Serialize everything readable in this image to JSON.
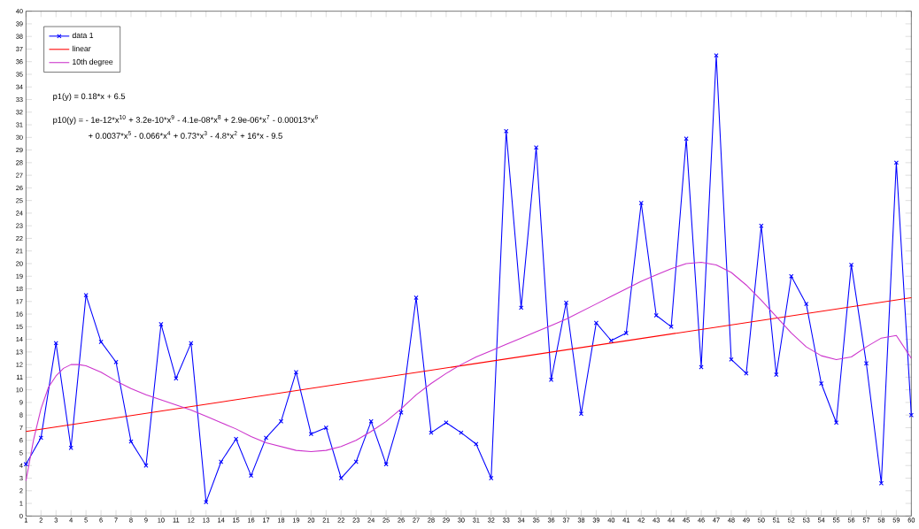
{
  "chart_data": {
    "type": "line",
    "x": [
      1,
      2,
      3,
      4,
      5,
      6,
      7,
      8,
      9,
      10,
      11,
      12,
      13,
      14,
      15,
      16,
      17,
      18,
      19,
      20,
      21,
      22,
      23,
      24,
      25,
      26,
      27,
      28,
      29,
      30,
      31,
      32,
      33,
      34,
      35,
      36,
      37,
      38,
      39,
      40,
      41,
      42,
      43,
      44,
      45,
      46,
      47,
      48,
      49,
      50,
      51,
      52,
      53,
      54,
      55,
      56,
      57,
      58,
      59,
      60
    ],
    "series": [
      {
        "name": "data 1",
        "color": "#0000ff",
        "marker": "cross",
        "values": [
          4.1,
          6.2,
          13.7,
          5.4,
          17.5,
          13.8,
          12.2,
          5.9,
          4.0,
          15.2,
          10.9,
          13.7,
          1.1,
          4.3,
          6.1,
          3.2,
          6.2,
          7.5,
          11.4,
          6.5,
          7.0,
          3.0,
          4.3,
          7.5,
          4.1,
          8.2,
          17.3,
          6.6,
          7.4,
          6.6,
          5.7,
          3.0,
          30.5,
          16.5,
          29.2,
          10.8,
          16.9,
          8.1,
          15.3,
          13.9,
          14.5,
          24.8,
          15.9,
          15.0,
          29.9,
          11.8,
          36.5,
          12.4,
          11.3,
          23.0,
          11.2,
          19.0,
          16.8,
          10.5,
          7.4,
          19.9,
          12.1,
          2.6,
          28.0,
          8.0
        ]
      },
      {
        "name": "linear",
        "color": "#ff0000",
        "x": [
          1,
          60
        ],
        "values": [
          6.7,
          17.3
        ]
      },
      {
        "name": "10th degree",
        "color": "#cc33cc",
        "x": [
          1,
          1.5,
          2,
          2.5,
          3,
          3.5,
          4,
          4.5,
          5,
          6,
          7,
          8,
          9,
          10,
          11,
          12,
          13,
          14,
          15,
          16,
          17,
          18,
          19,
          20,
          21,
          22,
          23,
          24,
          25,
          26,
          27,
          28,
          29,
          30,
          31,
          32,
          33,
          34,
          35,
          36,
          37,
          38,
          39,
          40,
          41,
          42,
          43,
          44,
          45,
          46,
          47,
          48,
          49,
          50,
          51,
          52,
          53,
          54,
          55,
          56,
          57,
          58,
          59,
          60
        ],
        "values": [
          2.8,
          6.0,
          8.5,
          10.2,
          11.1,
          11.7,
          12.0,
          12.0,
          11.9,
          11.4,
          10.7,
          10.1,
          9.6,
          9.2,
          8.8,
          8.4,
          7.9,
          7.4,
          6.9,
          6.3,
          5.8,
          5.5,
          5.2,
          5.1,
          5.2,
          5.5,
          6.0,
          6.7,
          7.5,
          8.5,
          9.6,
          10.5,
          11.3,
          12.0,
          12.6,
          13.1,
          13.6,
          14.1,
          14.6,
          15.1,
          15.6,
          16.2,
          16.8,
          17.4,
          18.0,
          18.6,
          19.1,
          19.6,
          20.0,
          20.1,
          19.9,
          19.3,
          18.3,
          17.1,
          15.8,
          14.5,
          13.4,
          12.7,
          12.4,
          12.6,
          13.4,
          14.1,
          14.3,
          12.5
        ]
      }
    ],
    "marker": "none",
    "xlim": [
      1,
      60
    ],
    "ylim": [
      0,
      40
    ],
    "xticks": [
      1,
      2,
      3,
      4,
      5,
      6,
      7,
      8,
      9,
      10,
      11,
      12,
      13,
      14,
      15,
      16,
      17,
      18,
      19,
      20,
      21,
      22,
      23,
      24,
      25,
      26,
      27,
      28,
      29,
      30,
      31,
      32,
      33,
      34,
      35,
      36,
      37,
      38,
      39,
      40,
      41,
      42,
      43,
      44,
      45,
      46,
      47,
      48,
      49,
      50,
      51,
      52,
      53,
      54,
      55,
      56,
      57,
      58,
      59,
      60
    ],
    "yticks": [
      0,
      1,
      2,
      3,
      4,
      5,
      6,
      7,
      8,
      9,
      10,
      11,
      12,
      13,
      14,
      15,
      16,
      17,
      18,
      19,
      20,
      21,
      22,
      23,
      24,
      25,
      26,
      27,
      28,
      29,
      30,
      31,
      32,
      33,
      34,
      35,
      36,
      37,
      38,
      39,
      40
    ],
    "legend": "top left",
    "grid": false,
    "annotations": [
      "p1(y) = 0.18*x + 6.5",
      "p10(y) = - 1e-12*x$^{10}$ + 3.2e-10*x$^{9}$ - 4.1e-08*x$^{8}$ + 2.9e-06*x$^{7}$ - 0.00013*x$^{6}$",
      "+ 0.0037*x$^{5}$ - 0.066*x$^{4}$ + 0.73*x$^{3}$ - 4.8*x$^{2}$ + 16*x - 9.5"
    ]
  }
}
